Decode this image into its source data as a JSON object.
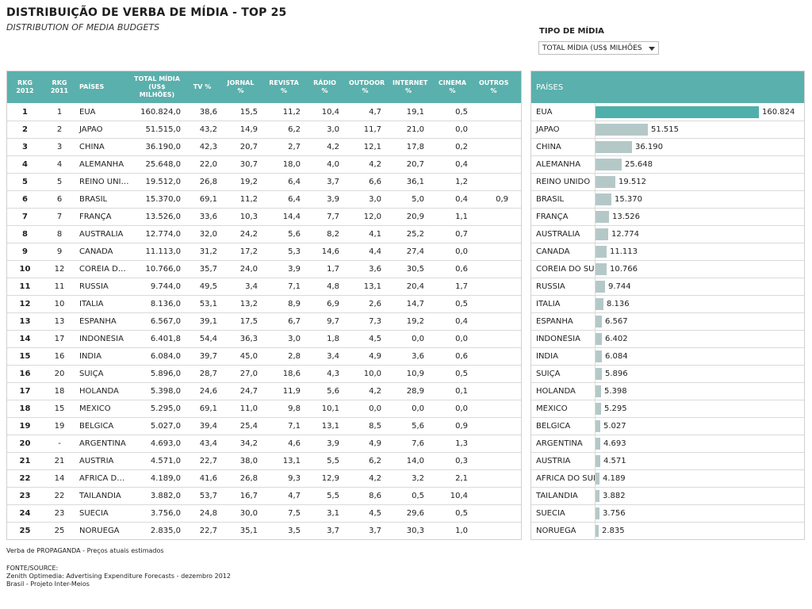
{
  "title": "DISTRIBUIÇÃO DE VERBA DE MÍDIA - TOP 25",
  "subtitle": "DISTRIBUTION OF MEDIA BUDGETS",
  "filter": {
    "label": "TIPO DE MÍDIA",
    "selected": "TOTAL MÍDIA (US$ MILHÕES"
  },
  "table": {
    "headers": {
      "rkg2012": "RKG 2012",
      "rkg2011": "RKG 2011",
      "paises": "PAÍSES",
      "total": "TOTAL MÍDIA (US$ MILHÕES)",
      "tv": "TV %",
      "jornal": "JORNAL %",
      "revista": "REVISTA %",
      "radio": "RÁDIO %",
      "outdoor": "OUTDOOR %",
      "internet": "INTERNET %",
      "cinema": "CINEMA %",
      "outros": "OUTROS %"
    },
    "rows": [
      {
        "r12": "1",
        "r11": "1",
        "pais": "EUA",
        "total": "160.824,0",
        "tv": "38,6",
        "jornal": "15,5",
        "revista": "11,2",
        "radio": "10,4",
        "outdoor": "4,7",
        "internet": "19,1",
        "cinema": "0,5",
        "outros": ""
      },
      {
        "r12": "2",
        "r11": "2",
        "pais": "JAPÃO",
        "total": "51.515,0",
        "tv": "43,2",
        "jornal": "14,9",
        "revista": "6,2",
        "radio": "3,0",
        "outdoor": "11,7",
        "internet": "21,0",
        "cinema": "0,0",
        "outros": ""
      },
      {
        "r12": "3",
        "r11": "3",
        "pais": "CHINA",
        "total": "36.190,0",
        "tv": "42,3",
        "jornal": "20,7",
        "revista": "2,7",
        "radio": "4,2",
        "outdoor": "12,1",
        "internet": "17,8",
        "cinema": "0,2",
        "outros": ""
      },
      {
        "r12": "4",
        "r11": "4",
        "pais": "ALEMANHA",
        "total": "25.648,0",
        "tv": "22,0",
        "jornal": "30,7",
        "revista": "18,0",
        "radio": "4,0",
        "outdoor": "4,2",
        "internet": "20,7",
        "cinema": "0,4",
        "outros": ""
      },
      {
        "r12": "5",
        "r11": "5",
        "pais": "REINO UNIDO",
        "total": "19.512,0",
        "tv": "26,8",
        "jornal": "19,2",
        "revista": "6,4",
        "radio": "3,7",
        "outdoor": "6,6",
        "internet": "36,1",
        "cinema": "1,2",
        "outros": ""
      },
      {
        "r12": "6",
        "r11": "6",
        "pais": "BRASIL",
        "total": "15.370,0",
        "tv": "69,1",
        "jornal": "11,2",
        "revista": "6,4",
        "radio": "3,9",
        "outdoor": "3,0",
        "internet": "5,0",
        "cinema": "0,4",
        "outros": "0,9"
      },
      {
        "r12": "7",
        "r11": "7",
        "pais": "FRANÇA",
        "total": "13.526,0",
        "tv": "33,6",
        "jornal": "10,3",
        "revista": "14,4",
        "radio": "7,7",
        "outdoor": "12,0",
        "internet": "20,9",
        "cinema": "1,1",
        "outros": ""
      },
      {
        "r12": "8",
        "r11": "8",
        "pais": "AUSTRÁLIA",
        "total": "12.774,0",
        "tv": "32,0",
        "jornal": "24,2",
        "revista": "5,6",
        "radio": "8,2",
        "outdoor": "4,1",
        "internet": "25,2",
        "cinema": "0,7",
        "outros": ""
      },
      {
        "r12": "9",
        "r11": "9",
        "pais": "CANADÁ",
        "total": "11.113,0",
        "tv": "31,2",
        "jornal": "17,2",
        "revista": "5,3",
        "radio": "14,6",
        "outdoor": "4,4",
        "internet": "27,4",
        "cinema": "0,0",
        "outros": ""
      },
      {
        "r12": "10",
        "r11": "12",
        "pais": "COREIA DO SUL",
        "total": "10.766,0",
        "tv": "35,7",
        "jornal": "24,0",
        "revista": "3,9",
        "radio": "1,7",
        "outdoor": "3,6",
        "internet": "30,5",
        "cinema": "0,6",
        "outros": ""
      },
      {
        "r12": "11",
        "r11": "11",
        "pais": "RUSSIA",
        "total": "9.744,0",
        "tv": "49,5",
        "jornal": "3,4",
        "revista": "7,1",
        "radio": "4,8",
        "outdoor": "13,1",
        "internet": "20,4",
        "cinema": "1,7",
        "outros": ""
      },
      {
        "r12": "12",
        "r11": "10",
        "pais": "ITALIA",
        "total": "8.136,0",
        "tv": "53,1",
        "jornal": "13,2",
        "revista": "8,9",
        "radio": "6,9",
        "outdoor": "2,6",
        "internet": "14,7",
        "cinema": "0,5",
        "outros": ""
      },
      {
        "r12": "13",
        "r11": "13",
        "pais": "ESPANHA",
        "total": "6.567,0",
        "tv": "39,1",
        "jornal": "17,5",
        "revista": "6,7",
        "radio": "9,7",
        "outdoor": "7,3",
        "internet": "19,2",
        "cinema": "0,4",
        "outros": ""
      },
      {
        "r12": "14",
        "r11": "17",
        "pais": "INDONÉSIA",
        "total": "6.401,8",
        "tv": "54,4",
        "jornal": "36,3",
        "revista": "3,0",
        "radio": "1,8",
        "outdoor": "4,5",
        "internet": "0,0",
        "cinema": "0,0",
        "outros": ""
      },
      {
        "r12": "15",
        "r11": "16",
        "pais": "ÍNDIA",
        "total": "6.084,0",
        "tv": "39,7",
        "jornal": "45,0",
        "revista": "2,8",
        "radio": "3,4",
        "outdoor": "4,9",
        "internet": "3,6",
        "cinema": "0,6",
        "outros": ""
      },
      {
        "r12": "16",
        "r11": "20",
        "pais": "SUIÇA",
        "total": "5.896,0",
        "tv": "28,7",
        "jornal": "27,0",
        "revista": "18,6",
        "radio": "4,3",
        "outdoor": "10,0",
        "internet": "10,9",
        "cinema": "0,5",
        "outros": ""
      },
      {
        "r12": "17",
        "r11": "18",
        "pais": "HOLANDA",
        "total": "5.398,0",
        "tv": "24,6",
        "jornal": "24,7",
        "revista": "11,9",
        "radio": "5,6",
        "outdoor": "4,2",
        "internet": "28,9",
        "cinema": "0,1",
        "outros": ""
      },
      {
        "r12": "18",
        "r11": "15",
        "pais": "MÉXICO",
        "total": "5.295,0",
        "tv": "69,1",
        "jornal": "11,0",
        "revista": "9,8",
        "radio": "10,1",
        "outdoor": "0,0",
        "internet": "0,0",
        "cinema": "0,0",
        "outros": ""
      },
      {
        "r12": "19",
        "r11": "19",
        "pais": "BÉLGICA",
        "total": "5.027,0",
        "tv": "39,4",
        "jornal": "25,4",
        "revista": "7,1",
        "radio": "13,1",
        "outdoor": "8,5",
        "internet": "5,6",
        "cinema": "0,9",
        "outros": ""
      },
      {
        "r12": "20",
        "r11": "-",
        "pais": "ARGENTINA",
        "total": "4.693,0",
        "tv": "43,4",
        "jornal": "34,2",
        "revista": "4,6",
        "radio": "3,9",
        "outdoor": "4,9",
        "internet": "7,6",
        "cinema": "1,3",
        "outros": ""
      },
      {
        "r12": "21",
        "r11": "21",
        "pais": "AUSTRIA",
        "total": "4.571,0",
        "tv": "22,7",
        "jornal": "38,0",
        "revista": "13,1",
        "radio": "5,5",
        "outdoor": "6,2",
        "internet": "14,0",
        "cinema": "0,3",
        "outros": ""
      },
      {
        "r12": "22",
        "r11": "14",
        "pais": "AFRICA DO SUL",
        "total": "4.189,0",
        "tv": "41,6",
        "jornal": "26,8",
        "revista": "9,3",
        "radio": "12,9",
        "outdoor": "4,2",
        "internet": "3,2",
        "cinema": "2,1",
        "outros": ""
      },
      {
        "r12": "23",
        "r11": "22",
        "pais": "TAILÂNDIA",
        "total": "3.882,0",
        "tv": "53,7",
        "jornal": "16,7",
        "revista": "4,7",
        "radio": "5,5",
        "outdoor": "8,6",
        "internet": "0,5",
        "cinema": "10,4",
        "outros": ""
      },
      {
        "r12": "24",
        "r11": "23",
        "pais": "SUECIA",
        "total": "3.756,0",
        "tv": "24,8",
        "jornal": "30,0",
        "revista": "7,5",
        "radio": "3,1",
        "outdoor": "4,5",
        "internet": "29,6",
        "cinema": "0,5",
        "outros": ""
      },
      {
        "r12": "25",
        "r11": "25",
        "pais": "NORUEGA",
        "total": "2.835,0",
        "tv": "22,7",
        "jornal": "35,1",
        "revista": "3,5",
        "radio": "3,7",
        "outdoor": "3,7",
        "internet": "30,3",
        "cinema": "1,0",
        "outros": ""
      }
    ]
  },
  "chart_data": {
    "type": "bar",
    "title": "PAÍSES",
    "categories": [
      "EUA",
      "JAPÃO",
      "CHINA",
      "ALEMANHA",
      "REINO UNIDO",
      "BRASIL",
      "FRANÇA",
      "AUSTRÁLIA",
      "CANADÁ",
      "COREIA DO SUL",
      "RUSSIA",
      "ITALIA",
      "ESPANHA",
      "INDONÉSIA",
      "ÍNDIA",
      "SUIÇA",
      "HOLANDA",
      "MÉXICO",
      "BÉLGICA",
      "ARGENTINA",
      "AUSTRIA",
      "AFRICA DO SUL",
      "TAILÂNDIA",
      "SUECIA",
      "NORUEGA"
    ],
    "values": [
      160824,
      51515,
      36190,
      25648,
      19512,
      15370,
      13526,
      12774,
      11113,
      10766,
      9744,
      8136,
      6567,
      6402,
      6084,
      5896,
      5398,
      5295,
      5027,
      4693,
      4571,
      4189,
      3882,
      3756,
      2835
    ],
    "value_labels": [
      "160.824",
      "51.515",
      "36.190",
      "25.648",
      "19.512",
      "15.370",
      "13.526",
      "12.774",
      "11.113",
      "10.766",
      "9.744",
      "8.136",
      "6.567",
      "6.402",
      "6.084",
      "5.896",
      "5.398",
      "5.295",
      "5.027",
      "4.693",
      "4.571",
      "4.189",
      "3.882",
      "3.756",
      "2.835"
    ],
    "orientation": "horizontal",
    "colors": {
      "lead": "#4fb0ab",
      "others": "#b5c8c8",
      "header": "#5ab0ac"
    }
  },
  "footer": {
    "note": "Verba de PROPAGANDA - Preços atuais estimados",
    "source_label": "FONTE/SOURCE:",
    "source_line1": "Zenith Optimedia: Advertising Expenditure Forecasts - dezembro 2012",
    "source_line2": "Brasil - Projeto Inter-Meios"
  }
}
